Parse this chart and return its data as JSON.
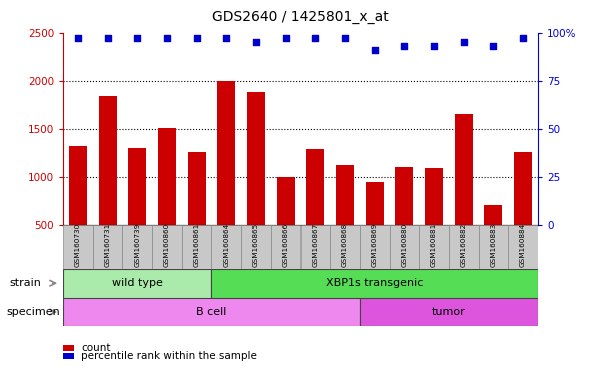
{
  "title": "GDS2640 / 1425801_x_at",
  "samples": [
    "GSM160730",
    "GSM160731",
    "GSM160739",
    "GSM160860",
    "GSM160861",
    "GSM160864",
    "GSM160865",
    "GSM160866",
    "GSM160867",
    "GSM160868",
    "GSM160869",
    "GSM160880",
    "GSM160881",
    "GSM160882",
    "GSM160883",
    "GSM160884"
  ],
  "counts": [
    1320,
    1840,
    1300,
    1510,
    1260,
    2000,
    1880,
    1000,
    1290,
    1120,
    940,
    1100,
    1090,
    1650,
    700,
    1260
  ],
  "percentiles": [
    97,
    97,
    97,
    97,
    97,
    97,
    95,
    97,
    97,
    97,
    91,
    93,
    93,
    95,
    93,
    97
  ],
  "bar_color": "#cc0000",
  "dot_color": "#0000cc",
  "ylim_left": [
    500,
    2500
  ],
  "ylim_right": [
    0,
    100
  ],
  "yticks_left": [
    500,
    1000,
    1500,
    2000,
    2500
  ],
  "yticks_right": [
    0,
    25,
    50,
    75,
    100
  ],
  "strain_groups": [
    {
      "label": "wild type",
      "start": 0,
      "end": 5,
      "color": "#aaeaaa"
    },
    {
      "label": "XBP1s transgenic",
      "start": 5,
      "end": 16,
      "color": "#55dd55"
    }
  ],
  "specimen_groups": [
    {
      "label": "B cell",
      "start": 0,
      "end": 10,
      "color": "#ee88ee"
    },
    {
      "label": "tumor",
      "start": 10,
      "end": 16,
      "color": "#dd55dd"
    }
  ],
  "strain_label": "strain",
  "specimen_label": "specimen",
  "legend_count_label": "count",
  "legend_pct_label": "percentile rank within the sample",
  "tick_label_bg": "#c8c8c8"
}
